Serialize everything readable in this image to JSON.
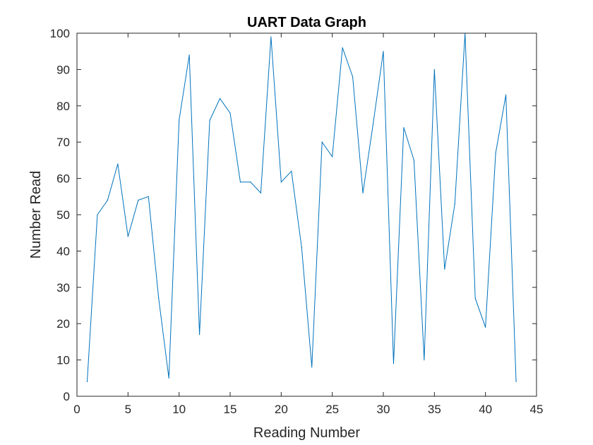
{
  "chart_data": {
    "type": "line",
    "title": "UART Data Graph",
    "xlabel": "Reading Number",
    "ylabel": "Number Read",
    "xlim": [
      0,
      45
    ],
    "ylim": [
      0,
      100
    ],
    "xticks": [
      0,
      5,
      10,
      15,
      20,
      25,
      30,
      35,
      40,
      45
    ],
    "yticks": [
      0,
      10,
      20,
      30,
      40,
      50,
      60,
      70,
      80,
      90,
      100
    ],
    "grid": false,
    "line_color": "#0072BD",
    "x": [
      1,
      2,
      3,
      4,
      5,
      6,
      7,
      8,
      9,
      10,
      11,
      12,
      13,
      14,
      15,
      16,
      17,
      18,
      19,
      20,
      21,
      22,
      23,
      24,
      25,
      26,
      27,
      28,
      29,
      30,
      31,
      32,
      33,
      34,
      35,
      36,
      37,
      38,
      39,
      40,
      41,
      42,
      43
    ],
    "y": [
      4,
      50,
      54,
      64,
      44,
      54,
      55,
      27,
      5,
      76,
      94,
      17,
      76,
      82,
      78,
      59,
      59,
      56,
      99,
      59,
      62,
      41,
      8,
      70,
      66,
      96,
      88,
      56,
      75,
      95,
      9,
      74,
      65,
      10,
      90,
      35,
      53,
      100,
      27,
      19,
      67,
      83,
      4
    ]
  }
}
